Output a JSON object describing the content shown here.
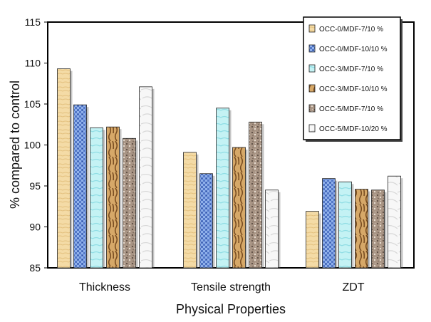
{
  "chart_data": {
    "type": "bar",
    "categories": [
      "Thickness",
      "Tensile  strength",
      "ZDT"
    ],
    "xlabel": "Physical Properties",
    "ylabel": "% compared to control",
    "ylim": [
      85,
      115
    ],
    "yticks": [
      85,
      90,
      95,
      100,
      105,
      110,
      115
    ],
    "grid": false,
    "legend_position": "top-right",
    "series": [
      {
        "name": "OCC-0/MDF-7/10 %",
        "values": [
          109.3,
          99.1,
          91.9
        ],
        "color": "#f2d9a4",
        "texture": "light-wood"
      },
      {
        "name": "OCC-0/MDF-10/10 %",
        "values": [
          104.9,
          96.5,
          95.9
        ],
        "color": "#6a8fd6",
        "texture": "blue-weave"
      },
      {
        "name": "OCC-3/MDF-7/10 %",
        "values": [
          102.1,
          104.5,
          95.5
        ],
        "color": "#b8eef2",
        "texture": "light-cyan"
      },
      {
        "name": "OCC-3/MDF-10/10 %",
        "values": [
          102.2,
          99.7,
          94.6
        ],
        "color": "#c8965a",
        "texture": "wood-grain"
      },
      {
        "name": "OCC-5/MDF-7/10 %",
        "values": [
          100.8,
          102.8,
          94.5
        ],
        "color": "#9c8a7e",
        "texture": "granite"
      },
      {
        "name": "OCC-5/MDF-10/20 %",
        "values": [
          107.1,
          94.5,
          96.2
        ],
        "color": "#f3f3f3",
        "texture": "white-marble"
      }
    ]
  }
}
